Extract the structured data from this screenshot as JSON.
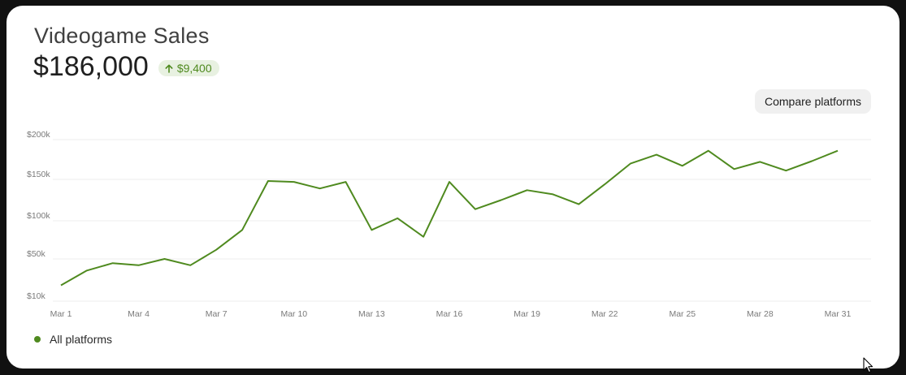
{
  "header": {
    "title": "Videogame Sales",
    "value": "$186,000",
    "delta": "$9,400",
    "delta_direction": "up"
  },
  "actions": {
    "compare_label": "Compare platforms"
  },
  "colors": {
    "line": "#4f8a1f",
    "badge_bg": "#e8f1e1",
    "grid": "#ececec"
  },
  "chart_data": {
    "type": "line",
    "title": "",
    "xlabel": "",
    "ylabel": "",
    "x_tick_labels": [
      "Mar 1",
      "Mar 4",
      "Mar 7",
      "Mar 10",
      "Mar 13",
      "Mar 16",
      "Mar 19",
      "Mar 22",
      "Mar 25",
      "Mar 28",
      "Mar 31"
    ],
    "y_ticks": [
      10000,
      50000,
      100000,
      150000,
      200000
    ],
    "y_tick_labels": [
      "$10k",
      "$50k",
      "$100k",
      "$150k",
      "$200k"
    ],
    "ylim": [
      10000,
      200000
    ],
    "xlim": [
      1,
      31
    ],
    "grid": true,
    "legend_position": "bottom-left",
    "series": [
      {
        "name": "All platforms",
        "x": [
          1,
          2,
          3,
          4,
          5,
          6,
          7,
          8,
          9,
          10,
          11,
          12,
          13,
          14,
          15,
          16,
          17,
          18,
          19,
          20,
          21,
          22,
          23,
          24,
          25,
          26,
          27,
          28,
          29,
          30,
          31
        ],
        "values": [
          25000,
          39000,
          46000,
          44000,
          50000,
          44000,
          62000,
          88000,
          148000,
          147000,
          139000,
          147000,
          88000,
          103000,
          79000,
          147000,
          114000,
          125000,
          137000,
          132000,
          120000,
          144000,
          170000,
          181000,
          167000,
          186000,
          163000,
          172000,
          161000,
          173000,
          186000
        ]
      }
    ]
  }
}
